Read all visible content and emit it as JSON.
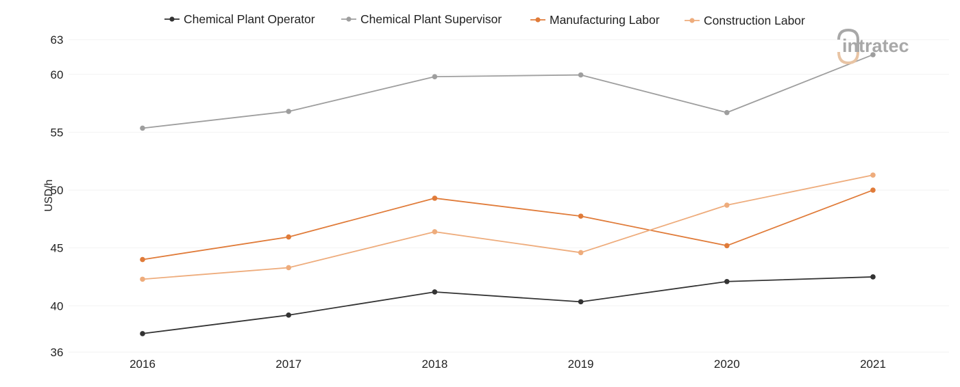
{
  "logo": {
    "text": "intratec",
    "primary_color": "#a8a8a8",
    "accent_color": "#e8c4a4"
  },
  "chart_data": {
    "type": "line",
    "title": "",
    "xlabel": "",
    "ylabel": "USD/h",
    "x": [
      "2016",
      "2017",
      "2018",
      "2019",
      "2020",
      "2021"
    ],
    "ylim": [
      36,
      63
    ],
    "yticks": [
      36,
      40,
      45,
      50,
      55,
      60,
      63
    ],
    "grid": true,
    "legend_position": "top-center",
    "series": [
      {
        "name": "Chemical Plant Operator",
        "color": "#333333",
        "values": [
          37.6,
          39.2,
          41.2,
          40.35,
          42.1,
          42.5
        ]
      },
      {
        "name": "Chemical Plant Supervisor",
        "color": "#9e9e9e",
        "values": [
          55.35,
          56.8,
          59.8,
          59.95,
          56.7,
          61.7
        ]
      },
      {
        "name": "Manufacturing Labor",
        "color": "#e07b39",
        "values": [
          44.0,
          45.95,
          49.3,
          47.75,
          45.2,
          50.0
        ]
      },
      {
        "name": "Construction Labor",
        "color": "#eeac7c",
        "values": [
          42.3,
          43.3,
          46.4,
          44.6,
          48.7,
          51.3
        ]
      }
    ]
  }
}
